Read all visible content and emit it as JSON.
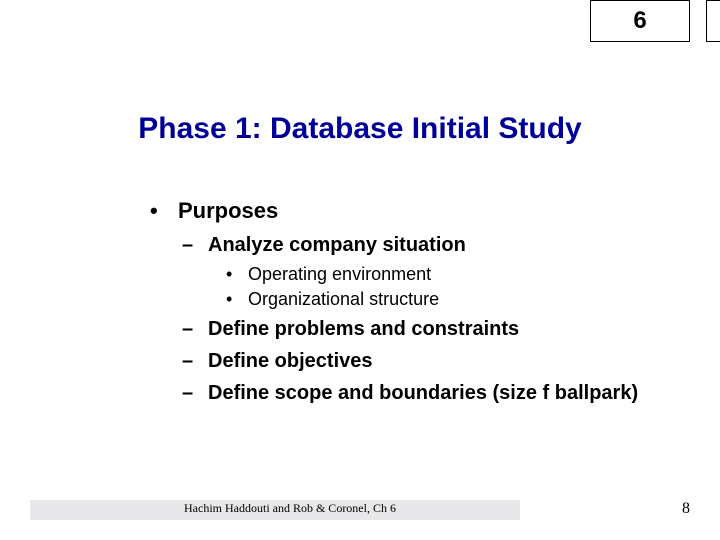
{
  "chapter": "6",
  "title": "Phase 1: Database Initial Study",
  "outline": {
    "l1_label": "Purposes",
    "l2_1": "Analyze company situation",
    "l3_1": "Operating environment",
    "l3_2": "Organizational structure",
    "l2_2": "Define problems and constraints",
    "l2_3": "Define objectives",
    "l2_4": "Define scope and boundaries (size f ballpark)"
  },
  "footer": "Hachim Haddouti and  Rob & Coronel, Ch 6",
  "page_number": "8",
  "colors": {
    "title_color": "#000099",
    "text_color": "#000000",
    "background": "#ffffff",
    "bar_color": "#e8e8ea"
  },
  "bullets": {
    "dot": "•",
    "dash": "–"
  }
}
